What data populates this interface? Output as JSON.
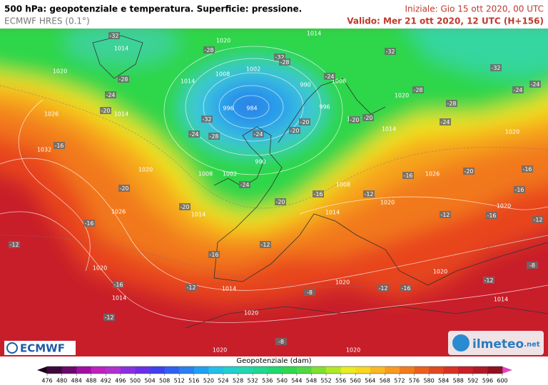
{
  "header": {
    "title": "500 hPa: geopotenziale e temperatura. Superficie: pressione.",
    "model": "ECMWF HRES (0.1°)",
    "init": "Iniziale: Gio 15 ott 2020, 00 UTC",
    "valid": "Valido: Mer 21 ott 2020, 12 UTC (H+156)"
  },
  "map": {
    "pressure_labels": [
      "1014",
      "1020",
      "1014",
      "1020",
      "1008",
      "1002",
      "1014",
      "990",
      "1008",
      "996",
      "984",
      "996",
      "1020",
      "1026",
      "1014",
      "1002",
      "1014",
      "1020",
      "1032",
      "990",
      "1020",
      "1008",
      "1002",
      "1026",
      "1008",
      "1026",
      "1014",
      "1014",
      "1020",
      "1020",
      "1020",
      "1014",
      "1014",
      "1020",
      "1020",
      "1014",
      "1020",
      "1020",
      "1020"
    ],
    "temperature_labels": [
      "-32",
      "-28",
      "-32",
      "-28",
      "-32",
      "-32",
      "-28",
      "-24",
      "-20",
      "-24",
      "-28",
      "-24",
      "-24",
      "-28",
      "-32",
      "-28",
      "-24",
      "-24",
      "-20",
      "-20",
      "-20",
      "-20",
      "-24",
      "-16",
      "-20",
      "-24",
      "-20",
      "-20",
      "-16",
      "-12",
      "-16",
      "-20",
      "-16",
      "-16",
      "-12",
      "-16",
      "-12",
      "-16",
      "-16",
      "-12",
      "-12",
      "-8",
      "-16",
      "-12",
      "-8",
      "-12",
      "-16",
      "-12",
      "-12",
      "-8"
    ]
  },
  "logos": {
    "left": "ECMWF",
    "right": "ilmeteo",
    "right_suffix": ".net"
  },
  "colorbar": {
    "title": "Geopotenziale (dam)",
    "labels": [
      476,
      480,
      484,
      488,
      492,
      496,
      500,
      504,
      508,
      512,
      516,
      520,
      524,
      528,
      532,
      536,
      540,
      544,
      548,
      552,
      556,
      560,
      564,
      568,
      572,
      576,
      580,
      584,
      588,
      592,
      596,
      600
    ]
  }
}
